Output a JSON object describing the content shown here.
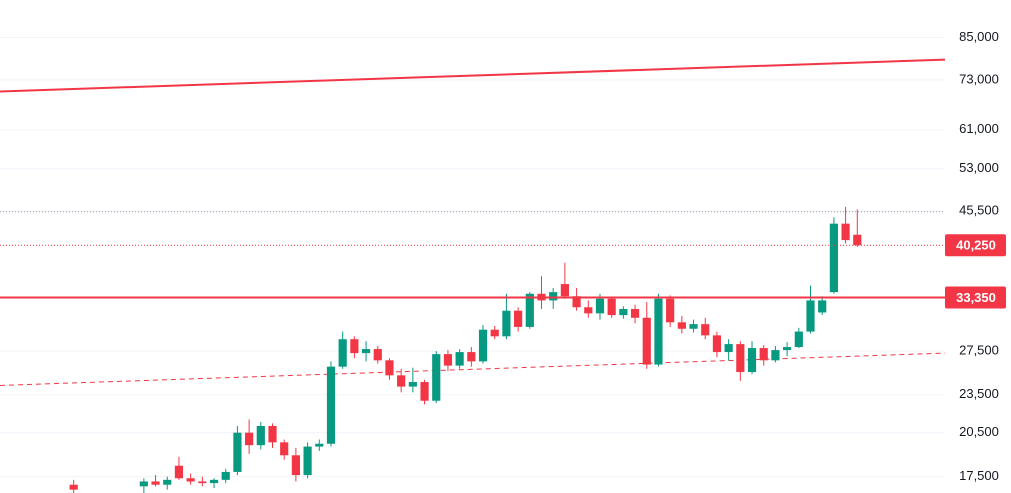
{
  "chart_data": {
    "type": "candlestick",
    "log_scale": true,
    "grid": true,
    "ylim": [
      16500,
      97300
    ],
    "xlim": [
      -6.3,
      74.5
    ],
    "yticks": [
      {
        "value": 17500,
        "label": "17,500"
      },
      {
        "value": 20500,
        "label": "20,500"
      },
      {
        "value": 23500,
        "label": "23,500"
      },
      {
        "value": 27500,
        "label": "27,500"
      },
      {
        "value": 45500,
        "label": "45,500"
      },
      {
        "value": 53000,
        "label": "53,000"
      },
      {
        "value": 61000,
        "label": "61,000"
      },
      {
        "value": 73000,
        "label": "73,000"
      },
      {
        "value": 85000,
        "label": "85,000"
      }
    ],
    "up_color": "#089981",
    "down_color": "#f23645",
    "x": [
      0,
      6,
      7,
      8,
      9,
      10,
      11,
      12,
      13,
      14,
      15,
      16,
      17,
      18,
      19,
      20,
      21,
      22,
      23,
      24,
      25,
      26,
      27,
      28,
      29,
      30,
      31,
      32,
      33,
      34,
      35,
      36,
      37,
      38,
      39,
      40,
      41,
      42,
      43,
      44,
      45,
      46,
      47,
      48,
      49,
      50,
      51,
      52,
      53,
      54,
      55,
      56,
      57,
      58,
      59,
      60,
      61,
      62,
      63,
      64,
      65,
      66,
      67
    ],
    "open": [
      17000,
      16900,
      17200,
      17000,
      18200,
      17400,
      17200,
      17100,
      17300,
      17800,
      20500,
      19600,
      21000,
      19800,
      18900,
      17600,
      19500,
      19700,
      26000,
      28700,
      27300,
      27700,
      26600,
      25200,
      24200,
      24600,
      23000,
      27200,
      26100,
      27400,
      26500,
      29700,
      29000,
      31800,
      30000,
      33800,
      33000,
      35000,
      33500,
      32200,
      31500,
      33200,
      31300,
      32000,
      31000,
      26200,
      33200,
      30500,
      29800,
      30300,
      29100,
      27400,
      28200,
      25500,
      27800,
      26600,
      27600,
      27900,
      29500,
      31600,
      34000,
      43500,
      41800
    ],
    "high": [
      17300,
      17400,
      17600,
      17500,
      18800,
      17700,
      17500,
      17400,
      18000,
      21000,
      21500,
      21300,
      21200,
      20000,
      19400,
      19800,
      20000,
      26500,
      29500,
      29000,
      28500,
      28000,
      26800,
      25800,
      25900,
      24800,
      27500,
      27600,
      27700,
      27900,
      30200,
      30100,
      33800,
      32200,
      34000,
      36000,
      34500,
      37800,
      34500,
      33000,
      33800,
      33400,
      32300,
      32500,
      32800,
      33800,
      33600,
      31200,
      30800,
      31000,
      29500,
      28700,
      28500,
      28500,
      28100,
      28000,
      28400,
      29900,
      34800,
      33500,
      44500,
      46200,
      45800
    ],
    "low": [
      16400,
      16500,
      16900,
      16700,
      17300,
      17000,
      16900,
      16800,
      17100,
      17600,
      19000,
      19300,
      19400,
      18600,
      17200,
      17400,
      19200,
      19500,
      25800,
      26800,
      26500,
      26300,
      24800,
      23700,
      23700,
      22700,
      22800,
      25600,
      25800,
      26000,
      26300,
      28700,
      28700,
      29500,
      29800,
      32000,
      32000,
      33200,
      31800,
      31000,
      30800,
      31000,
      30900,
      30400,
      25800,
      26000,
      30000,
      29300,
      29400,
      28700,
      26900,
      26600,
      24700,
      25300,
      26100,
      26400,
      27000,
      27800,
      29300,
      31300,
      33800,
      40500,
      40000
    ],
    "close": [
      16700,
      17200,
      17000,
      17300,
      17400,
      17200,
      17100,
      17300,
      17800,
      20500,
      19600,
      21000,
      19800,
      18900,
      17600,
      19500,
      19700,
      26000,
      28700,
      27300,
      27700,
      26600,
      25200,
      24200,
      24600,
      23000,
      27200,
      26100,
      27400,
      26500,
      29700,
      29000,
      31800,
      30000,
      33800,
      33000,
      34000,
      33500,
      32200,
      31500,
      33200,
      31300,
      32000,
      31000,
      26200,
      33200,
      30500,
      29800,
      30300,
      29100,
      27400,
      28200,
      25500,
      27800,
      26600,
      27600,
      27900,
      29500,
      33000,
      33000,
      43500,
      41000,
      40250
    ],
    "trend_lines": [
      {
        "points": [
          [
            -6.3,
            70000
          ],
          [
            74.5,
            78500
          ]
        ],
        "style": "solid",
        "color": "#f23645"
      },
      {
        "points": [
          [
            -6.3,
            24300
          ],
          [
            74.5,
            27300
          ]
        ],
        "style": "dashed",
        "color": "#f23645"
      }
    ],
    "price_lines": [
      {
        "value": 40250,
        "label": "40,250",
        "style": "dotted",
        "color": "#f23645"
      },
      {
        "value": 33350,
        "label": "33,350",
        "style": "solid",
        "color": "#f23645"
      }
    ],
    "high_line": {
      "value": 45400,
      "style": "dotted",
      "color": "#9598a1"
    }
  }
}
